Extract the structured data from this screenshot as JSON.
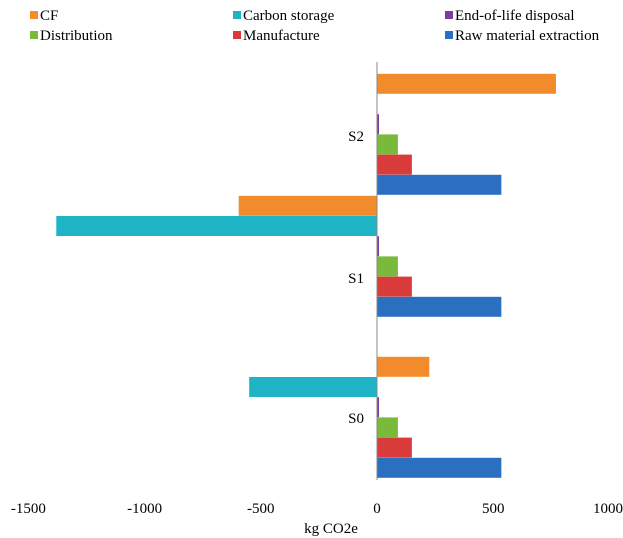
{
  "chart_data": {
    "type": "bar",
    "orientation": "horizontal",
    "categories": [
      "S0",
      "S1",
      "S2"
    ],
    "series": [
      {
        "name": "CF",
        "color": "#f28b2c",
        "values": [
          225,
          -595,
          770
        ]
      },
      {
        "name": "Carbon storage",
        "color": "#1fb3c6",
        "values": [
          -550,
          -1380,
          0
        ]
      },
      {
        "name": "End-of-life disposal",
        "color": "#7a3f9d",
        "values": [
          5,
          5,
          5
        ]
      },
      {
        "name": "Distribution",
        "color": "#7aba3a",
        "values": [
          90,
          90,
          90
        ]
      },
      {
        "name": "Manufacture",
        "color": "#d93a3a",
        "values": [
          150,
          150,
          150
        ]
      },
      {
        "name": "Raw material extraction",
        "color": "#2a6fc0",
        "values": [
          535,
          535,
          535
        ]
      }
    ],
    "legend_order": [
      "CF",
      "Carbon storage",
      "End-of-life disposal",
      "Distribution",
      "Manufacture",
      "Raw material extraction"
    ],
    "legend_position": "top",
    "xlabel": "kg CO2e",
    "ylabel": "",
    "xlim": [
      -1500,
      1000
    ],
    "xticks": [
      "-1500",
      "-1000",
      "-500",
      "0",
      "500",
      "1000"
    ],
    "grid": false
  }
}
